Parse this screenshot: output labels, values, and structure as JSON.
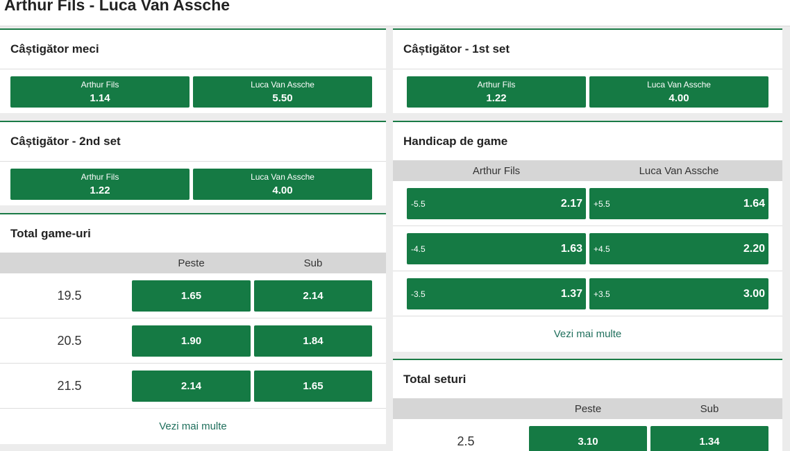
{
  "header": {
    "title": "Arthur Fils - Luca Van Assche"
  },
  "markets": [
    {
      "title": "Câștigător meci",
      "selections": [
        {
          "name": "Arthur Fils",
          "odds": "1.14"
        },
        {
          "name": "Luca Van Assche",
          "odds": "5.50"
        }
      ]
    },
    {
      "title": "Câștigător - 2nd set",
      "selections": [
        {
          "name": "Arthur Fils",
          "odds": "1.22"
        },
        {
          "name": "Luca Van Assche",
          "odds": "4.00"
        }
      ]
    },
    {
      "title": "Total game-uri",
      "columns": [
        "Peste",
        "Sub"
      ],
      "rows": [
        {
          "line": "19.5",
          "odds": [
            "1.65",
            "2.14"
          ]
        },
        {
          "line": "20.5",
          "odds": [
            "1.90",
            "1.84"
          ]
        },
        {
          "line": "21.5",
          "odds": [
            "2.14",
            "1.65"
          ]
        }
      ],
      "more": "Vezi mai multe"
    },
    {
      "title": "Câștigător - 1st set",
      "selections": [
        {
          "name": "Arthur Fils",
          "odds": "1.22"
        },
        {
          "name": "Luca Van Assche",
          "odds": "4.00"
        }
      ]
    },
    {
      "title": "Handicap de game",
      "columns": [
        "Arthur Fils",
        "Luca Van Assche"
      ],
      "rows": [
        {
          "odds": [
            {
              "line": "-5.5",
              "price": "2.17"
            },
            {
              "line": "+5.5",
              "price": "1.64"
            }
          ]
        },
        {
          "odds": [
            {
              "line": "-4.5",
              "price": "1.63"
            },
            {
              "line": "+4.5",
              "price": "2.20"
            }
          ]
        },
        {
          "odds": [
            {
              "line": "-3.5",
              "price": "1.37"
            },
            {
              "line": "+3.5",
              "price": "3.00"
            }
          ]
        }
      ],
      "more": "Vezi mai multe"
    },
    {
      "title": "Total seturi",
      "columns": [
        "Peste",
        "Sub"
      ],
      "rows": [
        {
          "line": "2.5",
          "odds": [
            "3.10",
            "1.34"
          ]
        }
      ]
    }
  ]
}
